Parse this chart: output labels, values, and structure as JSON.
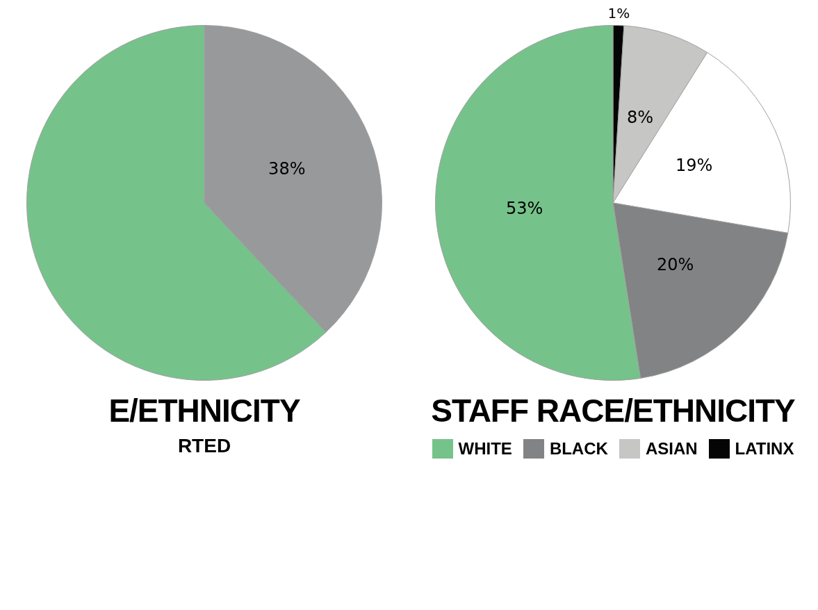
{
  "chart_data": [
    {
      "type": "pie",
      "title": "E/ETHNICITY",
      "categories": [
        null,
        null
      ],
      "values": [
        38,
        62
      ],
      "colors": [
        "#98999b",
        "#76c28b"
      ],
      "value_labels": [
        "38%",
        null
      ],
      "annotations": [
        "RTED"
      ],
      "legend": false
    },
    {
      "type": "pie",
      "title": "STAFF RACE/ETHNICITY",
      "categories": [
        "LATINX",
        "ASIAN",
        null,
        "BLACK",
        "WHITE"
      ],
      "values": [
        1,
        8,
        19,
        20,
        53
      ],
      "colors": [
        "#050505",
        "#c6c6c5",
        "#ffffff",
        "#818384",
        "#76c28b"
      ],
      "value_labels": [
        "1%",
        "8%",
        "19%",
        "20%",
        "53%"
      ],
      "legend": "bottom"
    }
  ]
}
